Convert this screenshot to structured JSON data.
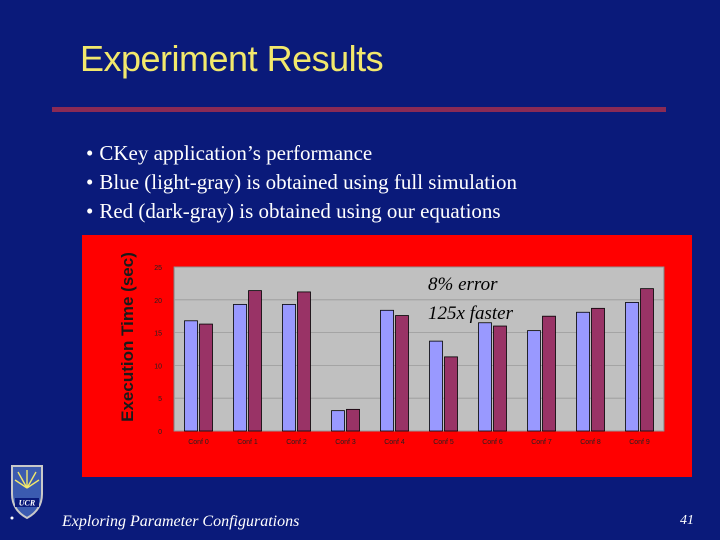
{
  "slide": {
    "title": "Experiment Results",
    "bullets": [
      "CKey application’s performance",
      "Blue (light-gray) is obtained using full simulation",
      "Red (dark-gray) is obtained using our equations"
    ],
    "footer": "Exploring Parameter Configurations",
    "page_number": "41"
  },
  "colors": {
    "background": "#0a1a7a",
    "title": "#f2e86c",
    "rule": "#8a2a55",
    "chart_frame": "#ff0000",
    "plot_area": "#c0c0c0",
    "simulation_bar": "#9999ff",
    "equation_bar": "#993366"
  },
  "icons": {
    "logo": "ucr-shield-logo"
  },
  "chart_data": {
    "type": "bar",
    "ylabel": "Execution Time (sec)",
    "xlabel": "",
    "ylim": [
      0,
      25
    ],
    "yticks": [
      0,
      5,
      10,
      15,
      20,
      25
    ],
    "grid": true,
    "categories": [
      "Conf 0",
      "Conf 1",
      "Conf 2",
      "Conf 3",
      "Conf 4",
      "Conf 5",
      "Conf 6",
      "Conf 7",
      "Conf 8",
      "Conf 9"
    ],
    "series": [
      {
        "values": [
          16.8,
          19.3,
          19.3,
          3.1,
          18.4,
          13.7,
          16.5,
          15.3,
          18.1,
          19.6
        ]
      },
      {
        "values": [
          16.3,
          21.4,
          21.2,
          3.3,
          17.6,
          11.3,
          16.0,
          17.5,
          18.7,
          21.7
        ]
      }
    ],
    "annotations": [
      "8% error",
      "125x faster"
    ]
  }
}
